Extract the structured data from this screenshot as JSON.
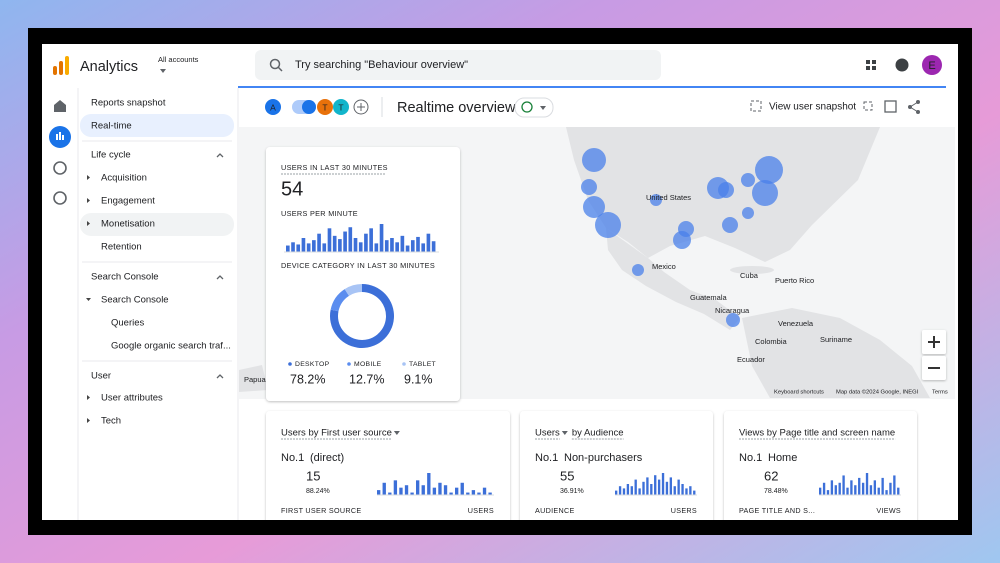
{
  "header": {
    "app_name": "Analytics",
    "account_label": "All accounts",
    "search_placeholder": "Try searching \"Behaviour overview\"",
    "avatar": "E"
  },
  "sidebar": {
    "top": [
      "Reports snapshot",
      "Real-time"
    ],
    "sections": [
      {
        "title": "Life cycle",
        "items": [
          "Acquisition",
          "Engagement",
          "Monetisation",
          "Retention"
        ]
      },
      {
        "title": "Search Console",
        "items": [
          "Search Console",
          "Queries",
          "Google organic search traf..."
        ]
      },
      {
        "title": "User",
        "items": [
          "User attributes",
          "Tech"
        ]
      }
    ]
  },
  "toolbar": {
    "chips": [
      "A",
      "T",
      "T"
    ],
    "title": "Realtime overview",
    "action": "View user snapshot"
  },
  "map": {
    "labels": [
      "United States",
      "Mexico",
      "Cuba",
      "Puerto Rico",
      "Guatemala",
      "Nicaragua",
      "Venezuela",
      "Colombia",
      "Suriname",
      "Ecuador",
      "Papua New Gui..."
    ],
    "attribution": [
      "Keyboard shortcuts",
      "Map data ©2024 Google, INEGI",
      "Terms"
    ]
  },
  "realtime": {
    "users_label": "USERS IN LAST 30 MINUTES",
    "users_value": 54,
    "per_minute_label": "USERS PER MINUTE",
    "per_minute": [
      6,
      9,
      7,
      13,
      8,
      11,
      17,
      8,
      22,
      15,
      12,
      19,
      23,
      13,
      9,
      17,
      22,
      8,
      26,
      11,
      13,
      9,
      15,
      6,
      11,
      14,
      8,
      17,
      10
    ],
    "device_label": "DEVICE CATEGORY IN LAST 30 MINUTES",
    "device": {
      "type": "pie",
      "categories": [
        "DESKTOP",
        "MOBILE",
        "TABLET"
      ],
      "values": [
        78.2,
        12.7,
        9.1
      ],
      "value_labels": [
        "78.2%",
        "12.7%",
        "9.1%"
      ],
      "colors": [
        "#3c6fd8",
        "#5b8def",
        "#a8c4f5"
      ]
    }
  },
  "cards": [
    {
      "title": [
        "Users by First user source"
      ],
      "rank": "No.1",
      "name": "(direct)",
      "value": 15,
      "share": "88.24%",
      "columns": [
        "FIRST USER SOURCE",
        "USERS"
      ],
      "bars": [
        2,
        5,
        1,
        6,
        3,
        4,
        1,
        6,
        4,
        9,
        3,
        5,
        4,
        1,
        3,
        5,
        1,
        2,
        1,
        3,
        1
      ]
    },
    {
      "title": [
        "Users",
        "by Audience"
      ],
      "rank": "No.1",
      "name": "Non-purchasers",
      "value": 55,
      "share": "36.91%",
      "columns": [
        "AUDIENCE",
        "USERS"
      ],
      "bars": [
        2,
        4,
        3,
        5,
        4,
        7,
        3,
        6,
        8,
        5,
        9,
        7,
        10,
        6,
        8,
        4,
        7,
        5,
        3,
        4,
        2
      ]
    },
    {
      "title": [
        "Views by Page title and screen name"
      ],
      "rank": "No.1",
      "name": "Home",
      "value": 62,
      "share": "78.48%",
      "columns": [
        "PAGE TITLE AND S...",
        "VIEWS"
      ],
      "bars": [
        3,
        5,
        2,
        6,
        4,
        5,
        8,
        3,
        6,
        4,
        7,
        5,
        9,
        4,
        6,
        3,
        7,
        2,
        5,
        8,
        3
      ]
    }
  ]
}
